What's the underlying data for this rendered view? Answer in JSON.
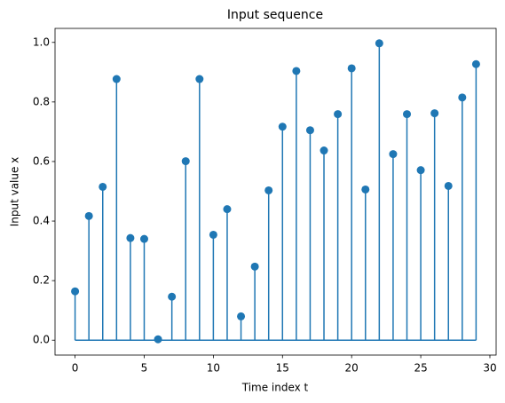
{
  "chart_data": {
    "type": "stem",
    "title": "Input sequence",
    "xlabel": "Time index t",
    "ylabel": "Input value x",
    "x": [
      0,
      1,
      2,
      3,
      4,
      5,
      6,
      7,
      8,
      9,
      10,
      11,
      12,
      13,
      14,
      15,
      16,
      17,
      18,
      19,
      20,
      21,
      22,
      23,
      24,
      25,
      26,
      27,
      28,
      29
    ],
    "values": [
      0.164,
      0.417,
      0.515,
      0.877,
      0.343,
      0.34,
      0.003,
      0.146,
      0.601,
      0.877,
      0.354,
      0.44,
      0.08,
      0.247,
      0.503,
      0.717,
      0.904,
      0.705,
      0.637,
      0.759,
      0.913,
      0.506,
      0.997,
      0.625,
      0.759,
      0.571,
      0.762,
      0.518,
      0.815,
      0.927
    ],
    "color": "#1f77b4",
    "xlim": [
      -1.45,
      30.45
    ],
    "xticks": [
      0,
      5,
      10,
      15,
      20,
      25,
      30
    ],
    "ylim": [
      -0.05,
      1.047
    ],
    "yticks": [
      {
        "value": 0,
        "label": "0.0"
      },
      {
        "value": 0.2,
        "label": "0.2"
      },
      {
        "value": 0.4,
        "label": "0.4"
      },
      {
        "value": 0.6,
        "label": "0.6"
      },
      {
        "value": 0.8,
        "label": "0.8"
      },
      {
        "value": 1,
        "label": "1.0"
      }
    ]
  }
}
